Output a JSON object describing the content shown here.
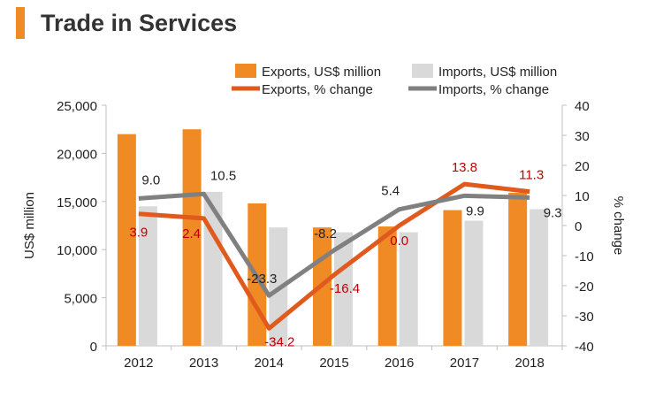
{
  "chart_data": {
    "type": "bar",
    "title": "Trade in Services",
    "categories": [
      "2012",
      "2013",
      "2014",
      "2015",
      "2016",
      "2017",
      "2018"
    ],
    "series": [
      {
        "name": "Exports, US$ million",
        "kind": "bar",
        "axis": "left",
        "color": "#f08a24",
        "values": [
          22000,
          22500,
          14800,
          12300,
          12400,
          14100,
          15900
        ]
      },
      {
        "name": "Imports, US$ million",
        "kind": "bar",
        "axis": "left",
        "color": "#d9d9d9",
        "values": [
          14500,
          16000,
          12300,
          11800,
          11800,
          13000,
          14200
        ]
      },
      {
        "name": "Exports, % change",
        "kind": "line",
        "axis": "right",
        "color": "#e05a1e",
        "label_color": "#c00000",
        "values": [
          3.9,
          2.4,
          -34.2,
          -16.4,
          0.0,
          13.8,
          11.3
        ],
        "labels": [
          "3.9",
          "2.4",
          "-34.2",
          "-16.4",
          "0.0",
          "13.8",
          "11.3"
        ]
      },
      {
        "name": "Imports, % change",
        "kind": "line",
        "axis": "right",
        "color": "#808080",
        "label_color": "#222222",
        "values": [
          9.0,
          10.5,
          -23.3,
          -8.2,
          5.4,
          9.9,
          9.3
        ],
        "labels": [
          "9.0",
          "10.5",
          "-23.3",
          "-8.2",
          "5.4",
          "9.9",
          "9.3"
        ]
      }
    ],
    "ylabel": "US$ million",
    "ylim": [
      0,
      25000
    ],
    "yticks": [
      0,
      5000,
      10000,
      15000,
      20000,
      25000
    ],
    "ytick_labels": [
      "0",
      "5,000",
      "10,000",
      "15,000",
      "20,000",
      "25,000"
    ],
    "y2label": "% change",
    "y2lim": [
      -40,
      40
    ],
    "y2ticks": [
      -40,
      -30,
      -20,
      -10,
      0,
      10,
      20,
      30,
      40
    ],
    "y2tick_labels": [
      "-40",
      "-30",
      "-20",
      "-10",
      "0",
      "10",
      "20",
      "30",
      "40"
    ],
    "legend_order": [
      "Exports, US$ million",
      "Imports, US$ million",
      "Exports, % change",
      "Imports, % change"
    ],
    "legend_position": "top",
    "grid": false
  },
  "accent_color": "#f08a24"
}
